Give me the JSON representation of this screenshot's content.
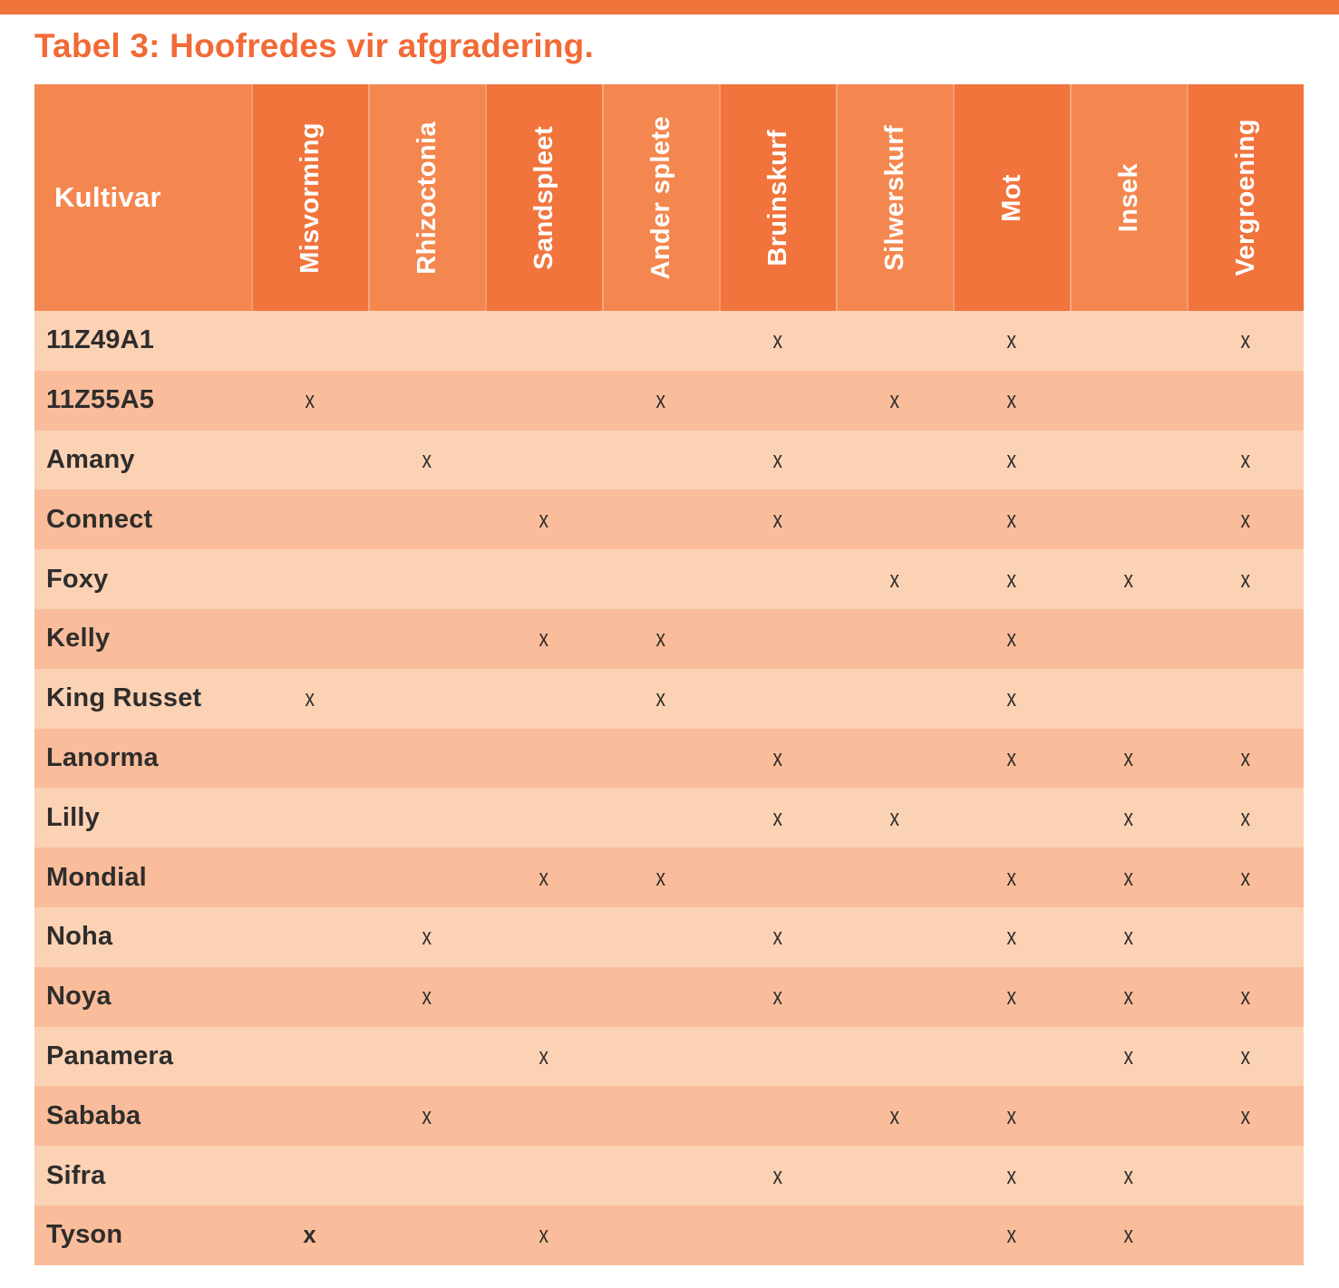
{
  "title": "Tabel 3: Hoofredes vir afgradering.",
  "colors": {
    "accent_bar": "#F1743C",
    "title_text": "#F26A36",
    "header_dark": "#F1743C",
    "header_light": "#F4874F",
    "row_light": "#FCD2B4",
    "row_dark": "#FABD9B",
    "body_text": "#2E2D2C"
  },
  "table": {
    "kultivar_header": "Kultivar",
    "mark_symbol": "x",
    "columns": [
      "Misvorming",
      "Rhizoctonia",
      "Sandspleet",
      "Ander splete",
      "Bruinskurf",
      "Silwerskurf",
      "Mot",
      "Insek",
      "Vergroening"
    ],
    "rows": [
      {
        "kultivar": "11Z49A1",
        "marks": [
          0,
          0,
          0,
          0,
          1,
          0,
          1,
          0,
          1
        ]
      },
      {
        "kultivar": "11Z55A5",
        "marks": [
          1,
          0,
          0,
          1,
          0,
          1,
          1,
          0,
          0
        ]
      },
      {
        "kultivar": "Amany",
        "marks": [
          0,
          1,
          0,
          0,
          1,
          0,
          1,
          0,
          1
        ]
      },
      {
        "kultivar": "Connect",
        "marks": [
          0,
          0,
          1,
          0,
          1,
          0,
          1,
          0,
          1
        ]
      },
      {
        "kultivar": "Foxy",
        "marks": [
          0,
          0,
          0,
          0,
          0,
          1,
          1,
          1,
          1
        ]
      },
      {
        "kultivar": "Kelly",
        "marks": [
          0,
          0,
          1,
          1,
          0,
          0,
          1,
          0,
          0
        ]
      },
      {
        "kultivar": "King Russet",
        "marks": [
          1,
          0,
          0,
          1,
          0,
          0,
          1,
          0,
          0
        ]
      },
      {
        "kultivar": "Lanorma",
        "marks": [
          0,
          0,
          0,
          0,
          1,
          0,
          1,
          1,
          1
        ]
      },
      {
        "kultivar": "Lilly",
        "marks": [
          0,
          0,
          0,
          0,
          1,
          1,
          0,
          1,
          1
        ]
      },
      {
        "kultivar": "Mondial",
        "marks": [
          0,
          0,
          1,
          1,
          0,
          0,
          1,
          1,
          1
        ]
      },
      {
        "kultivar": "Noha",
        "marks": [
          0,
          1,
          0,
          0,
          1,
          0,
          1,
          1,
          0
        ]
      },
      {
        "kultivar": "Noya",
        "marks": [
          0,
          1,
          0,
          0,
          1,
          0,
          1,
          1,
          1
        ]
      },
      {
        "kultivar": "Panamera",
        "marks": [
          0,
          0,
          1,
          0,
          0,
          0,
          0,
          1,
          1
        ]
      },
      {
        "kultivar": "Sababa",
        "marks": [
          0,
          1,
          0,
          0,
          0,
          1,
          1,
          0,
          1
        ]
      },
      {
        "kultivar": "Sifra",
        "marks": [
          0,
          0,
          0,
          0,
          1,
          0,
          1,
          1,
          0
        ]
      },
      {
        "kultivar": "Tyson",
        "marks": [
          2,
          0,
          1,
          0,
          0,
          0,
          1,
          1,
          0
        ]
      }
    ]
  }
}
